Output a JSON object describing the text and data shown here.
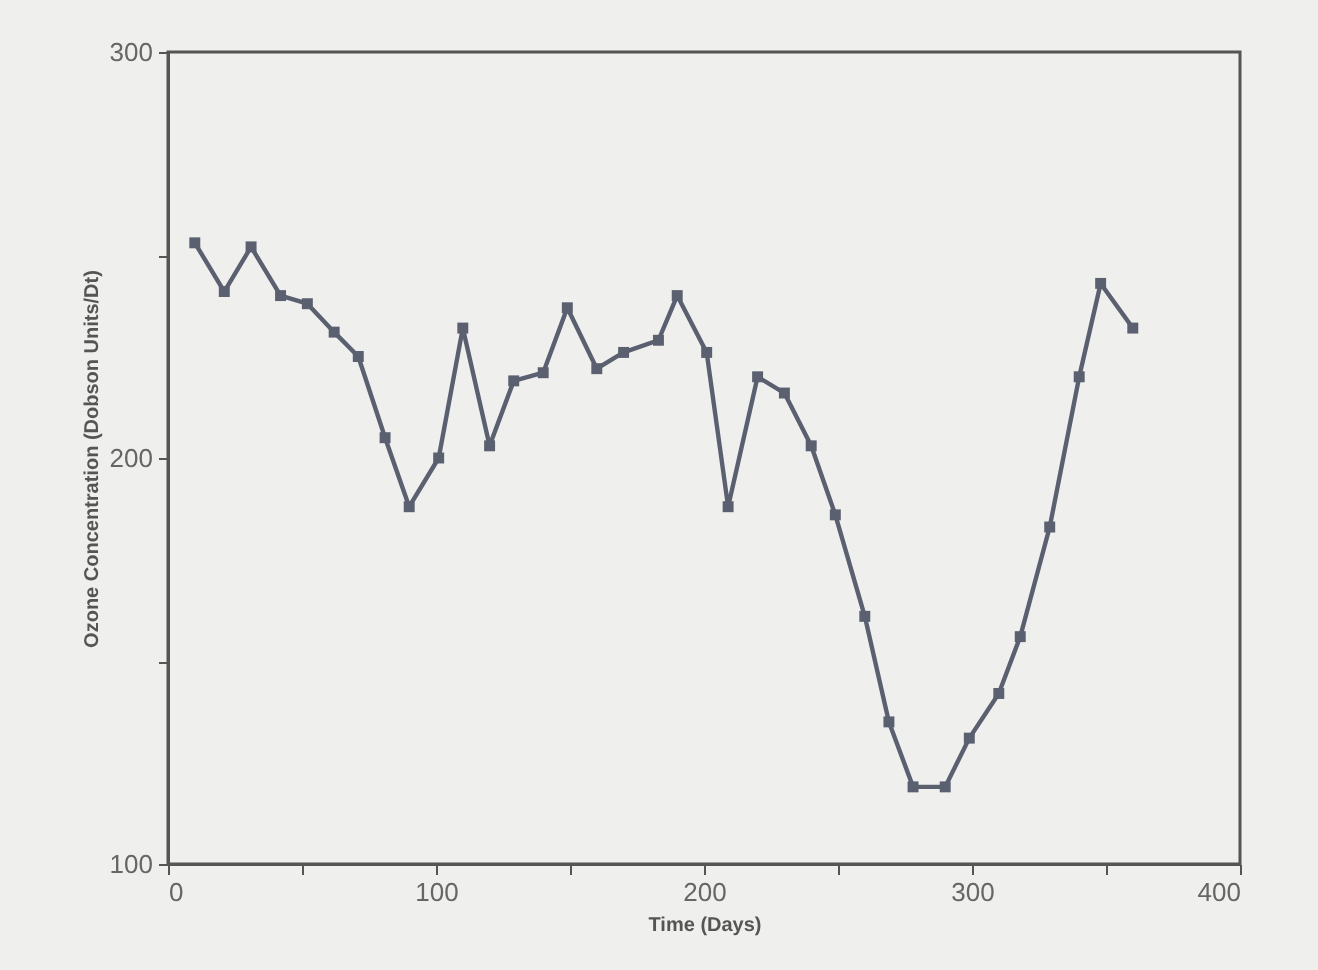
{
  "chart_data": {
    "type": "line",
    "xlabel": "Time (Days)",
    "ylabel": "Ozone Concentration (Dobson Units/Dt)",
    "x": [
      10,
      21,
      31,
      42,
      52,
      62,
      71,
      81,
      90,
      101,
      110,
      120,
      129,
      140,
      149,
      160,
      170,
      183,
      190,
      201,
      209,
      220,
      230,
      240,
      249,
      260,
      269,
      278,
      290,
      299,
      310,
      318,
      329,
      340,
      348,
      360
    ],
    "series": [
      {
        "color": "#5a6070",
        "values": [
          253,
          241,
          252,
          240,
          238,
          231,
          225,
          205,
          188,
          200,
          232,
          203,
          219,
          221,
          237,
          222,
          226,
          229,
          240,
          226,
          188,
          220,
          216,
          203,
          186,
          161,
          135,
          119,
          119,
          131,
          142,
          156,
          183,
          220,
          243,
          232
        ]
      }
    ],
    "xlim": [
      0,
      400
    ],
    "xticks": [
      0,
      {
        "value": 50,
        "label": null
      },
      100,
      {
        "value": 150,
        "label": null
      },
      200,
      {
        "value": 250,
        "label": null
      },
      300,
      {
        "value": 350,
        "label": null
      },
      400
    ],
    "ylim": [
      100,
      300
    ],
    "yticks": [
      100,
      {
        "value": 150,
        "label": null
      },
      200,
      {
        "value": 250,
        "label": null
      },
      300
    ],
    "marker": "square",
    "line_style": "solid",
    "grid": false
  }
}
